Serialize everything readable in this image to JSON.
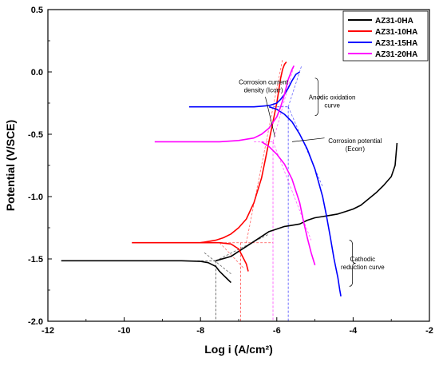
{
  "chart_data": {
    "type": "line",
    "title": "",
    "xlabel": "Log i (A/cm²)",
    "ylabel": "Potential (V/SCE)",
    "xlim": [
      -12,
      -2
    ],
    "ylim": [
      -2.0,
      0.5
    ],
    "xticks": [
      -12,
      -10,
      -8,
      -6,
      -4,
      -2
    ],
    "xtick_labels": [
      "-12",
      "-10",
      "-8",
      "-6",
      "-4",
      "-2"
    ],
    "yticks": [
      -2.0,
      -1.5,
      -1.0,
      -0.5,
      0.0,
      0.5
    ],
    "ytick_labels": [
      "-2.0",
      "-1.5",
      "-1.0",
      "-0.5",
      "0.0",
      "0.5"
    ],
    "grid": false,
    "legend_position": "top-right",
    "colors": {
      "AZ31-0HA": "#000000",
      "AZ31-10HA": "#ff0000",
      "AZ31-15HA": "#0000ff",
      "AZ31-20HA": "#ff00ff"
    },
    "series": [
      {
        "name": "AZ31-0HA",
        "x": [
          -11.65,
          -11,
          -10,
          -9,
          -8.5,
          -8,
          -7.8,
          -7.6,
          -7.5,
          -7.4,
          -7.3,
          -7.2
        ],
        "y": [
          -1.515,
          -1.515,
          -1.515,
          -1.515,
          -1.515,
          -1.52,
          -1.53,
          -1.56,
          -1.6,
          -1.63,
          -1.66,
          -1.69
        ]
      },
      {
        "name": "AZ31-0HA",
        "x": [
          -7.6,
          -7.2,
          -7.0,
          -6.8,
          -6.6,
          -6.4,
          -6.2,
          -6.0,
          -5.8,
          -5.6,
          -5.4,
          -5.2,
          -5.0,
          -4.8,
          -4.6,
          -4.4,
          -4.2,
          -4.0,
          -3.8,
          -3.6,
          -3.4,
          -3.2,
          -3.0,
          -2.9,
          -2.85
        ],
        "y": [
          -1.515,
          -1.48,
          -1.44,
          -1.4,
          -1.36,
          -1.32,
          -1.28,
          -1.26,
          -1.24,
          -1.23,
          -1.22,
          -1.19,
          -1.17,
          -1.16,
          -1.15,
          -1.14,
          -1.12,
          -1.1,
          -1.07,
          -1.02,
          -0.97,
          -0.91,
          -0.84,
          -0.75,
          -0.57
        ]
      },
      {
        "name": "AZ31-10HA",
        "x": [
          -9.8,
          -9,
          -8,
          -7.5,
          -7.2,
          -7.0,
          -6.9,
          -6.8,
          -6.75
        ],
        "y": [
          -1.37,
          -1.37,
          -1.37,
          -1.37,
          -1.38,
          -1.42,
          -1.48,
          -1.54,
          -1.6
        ]
      },
      {
        "name": "AZ31-10HA",
        "x": [
          -8.0,
          -7.8,
          -7.6,
          -7.4,
          -7.2,
          -7.0,
          -6.8,
          -6.6,
          -6.4,
          -6.3,
          -6.2,
          -6.1,
          -6.0,
          -5.95,
          -5.9,
          -5.85,
          -5.8,
          -5.75
        ],
        "y": [
          -1.37,
          -1.36,
          -1.35,
          -1.33,
          -1.3,
          -1.25,
          -1.18,
          -1.05,
          -0.85,
          -0.7,
          -0.55,
          -0.4,
          -0.25,
          -0.15,
          -0.05,
          0.02,
          0.06,
          0.08
        ]
      },
      {
        "name": "AZ31-15HA",
        "x": [
          -8.3,
          -7.5,
          -7.0,
          -6.8,
          -6.6,
          -6.4,
          -6.2,
          -6.0,
          -5.9,
          -5.8,
          -5.7,
          -5.6,
          -5.5,
          -5.4
        ],
        "y": [
          -0.28,
          -0.28,
          -0.28,
          -0.28,
          -0.28,
          -0.275,
          -0.27,
          -0.25,
          -0.22,
          -0.18,
          -0.13,
          -0.07,
          -0.02,
          0.0
        ]
      },
      {
        "name": "AZ31-15HA",
        "x": [
          -6.2,
          -6.0,
          -5.8,
          -5.6,
          -5.4,
          -5.2,
          -5.0,
          -4.8,
          -4.7,
          -4.6,
          -4.5,
          -4.4,
          -4.35,
          -4.32
        ],
        "y": [
          -0.28,
          -0.3,
          -0.34,
          -0.4,
          -0.5,
          -0.62,
          -0.78,
          -1.0,
          -1.15,
          -1.32,
          -1.5,
          -1.65,
          -1.75,
          -1.8
        ]
      },
      {
        "name": "AZ31-20HA",
        "x": [
          -9.2,
          -8.5,
          -8.0,
          -7.5,
          -7.0,
          -6.6,
          -6.4,
          -6.2,
          -6.0,
          -5.9,
          -5.8,
          -5.7,
          -5.6,
          -5.55
        ],
        "y": [
          -0.56,
          -0.56,
          -0.56,
          -0.56,
          -0.55,
          -0.53,
          -0.5,
          -0.45,
          -0.36,
          -0.28,
          -0.18,
          -0.06,
          0.02,
          0.05
        ]
      },
      {
        "name": "AZ31-20HA",
        "x": [
          -6.4,
          -6.2,
          -6.0,
          -5.8,
          -5.6,
          -5.4,
          -5.3,
          -5.2,
          -5.1,
          -5.05,
          -5.0
        ],
        "y": [
          -0.56,
          -0.6,
          -0.66,
          -0.74,
          -0.86,
          -1.05,
          -1.2,
          -1.33,
          -1.45,
          -1.5,
          -1.55
        ]
      }
    ],
    "tafel_lines": [
      {
        "color": "#ff0000",
        "x": [
          -6.8,
          -5.85
        ],
        "y": [
          -1.37,
          0.1
        ]
      },
      {
        "color": "#ff0000",
        "x": [
          -7.5,
          -6.85
        ],
        "y": [
          -1.37,
          -1.58
        ]
      },
      {
        "color": "#0000ff",
        "x": [
          -5.7,
          -5.35
        ],
        "y": [
          -0.28,
          0.05
        ]
      },
      {
        "color": "#0000ff",
        "x": [
          -5.7,
          -4.8
        ],
        "y": [
          -0.28,
          -0.92
        ]
      },
      {
        "color": "#ff00ff",
        "x": [
          -6.1,
          -5.55
        ],
        "y": [
          -0.56,
          0.05
        ]
      },
      {
        "color": "#ff00ff",
        "x": [
          -6.1,
          -5.1
        ],
        "y": [
          -0.56,
          -1.35
        ]
      },
      {
        "color": "#000000",
        "x": [
          -7.6,
          -6.2
        ],
        "y": [
          -1.515,
          -1.3
        ]
      },
      {
        "color": "#000000",
        "x": [
          -7.9,
          -7.2
        ],
        "y": [
          -1.45,
          -1.62
        ]
      }
    ],
    "reference_lines": [
      {
        "color": "#ff0000",
        "x": [
          -8.0,
          -6.1
        ],
        "y": [
          -1.37,
          -1.37
        ]
      },
      {
        "color": "#000000",
        "x": [
          -8.5,
          -7.6
        ],
        "y": [
          -1.515,
          -1.515
        ]
      },
      {
        "color": "#ff00ff",
        "x": [
          -6.6,
          -6.1
        ],
        "y": [
          -0.56,
          -0.56
        ]
      },
      {
        "color": "#0000ff",
        "x": [
          -6.2,
          -5.7
        ],
        "y": [
          -0.28,
          -0.28
        ]
      },
      {
        "color": "#000000",
        "x": [
          -7.6,
          -7.6
        ],
        "y": [
          -1.515,
          -2.0
        ]
      },
      {
        "color": "#ff0000",
        "x": [
          -6.95,
          -6.95
        ],
        "y": [
          -1.37,
          -2.0
        ]
      },
      {
        "color": "#ff00ff",
        "x": [
          -6.1,
          -6.1
        ],
        "y": [
          -0.56,
          -2.0
        ]
      },
      {
        "color": "#0000ff",
        "x": [
          -5.7,
          -5.7
        ],
        "y": [
          -0.28,
          -2.0
        ]
      }
    ],
    "annotations": [
      {
        "lines": [
          "Corrosion current",
          "density (Icorr)"
        ],
        "x": -6.35,
        "y": -0.1
      },
      {
        "lines": [
          "Anodic oxidation",
          "curve"
        ],
        "x": -4.55,
        "y": -0.22
      },
      {
        "lines": [
          "Corrosion potential",
          "(Ecorr)"
        ],
        "x": -3.95,
        "y": -0.57
      },
      {
        "lines": [
          "Cathodic",
          "reduction curve"
        ],
        "x": -3.75,
        "y": -1.52
      }
    ]
  }
}
